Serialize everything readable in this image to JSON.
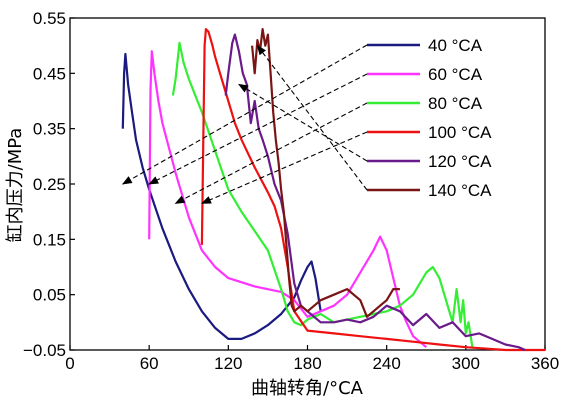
{
  "chart_data": {
    "type": "line",
    "xlabel": "曲轴转角/°CA",
    "ylabel": "缸内压力/MPa",
    "xlim": [
      0,
      360
    ],
    "ylim": [
      -0.05,
      0.55
    ],
    "xticks": [
      0,
      60,
      120,
      180,
      240,
      300,
      360
    ],
    "yticks": [
      -0.05,
      0.05,
      0.15,
      0.25,
      0.35,
      0.45,
      0.55
    ],
    "xtick_labels": [
      "0",
      "60",
      "120",
      "180",
      "240",
      "300",
      "360"
    ],
    "ytick_labels": [
      "−0.05",
      "0.05",
      "0.15",
      "0.25",
      "0.35",
      "0.45",
      "0.55"
    ],
    "grid": false,
    "legend_position": "right",
    "series": [
      {
        "name": "40 °CA",
        "color": "#1a1a80",
        "x": [
          40,
          41,
          42,
          44,
          47,
          50,
          55,
          60,
          70,
          80,
          90,
          100,
          110,
          120,
          130,
          140,
          150,
          160,
          170,
          175,
          180,
          183,
          186,
          190
        ],
        "y": [
          0.35,
          0.45,
          0.485,
          0.43,
          0.38,
          0.33,
          0.28,
          0.24,
          0.17,
          0.11,
          0.06,
          0.02,
          -0.01,
          -0.03,
          -0.03,
          -0.02,
          -0.005,
          0.015,
          0.045,
          0.075,
          0.1,
          0.11,
          0.08,
          0.02
        ]
      },
      {
        "name": "60 °CA",
        "color": "#ff33ff",
        "x": [
          60,
          61,
          62,
          64,
          67,
          70,
          80,
          90,
          100,
          110,
          120,
          140,
          160,
          170,
          180,
          190,
          200,
          210,
          220,
          230,
          235,
          240,
          245,
          250,
          255,
          260,
          270
        ],
        "y": [
          0.15,
          0.42,
          0.49,
          0.45,
          0.4,
          0.36,
          0.27,
          0.19,
          0.13,
          0.1,
          0.08,
          0.065,
          0.055,
          0.04,
          0.01,
          0.02,
          0.03,
          0.05,
          0.09,
          0.13,
          0.155,
          0.13,
          0.08,
          0.03,
          0.0,
          -0.025,
          -0.045
        ]
      },
      {
        "name": "80 °CA",
        "color": "#33ee33",
        "x": [
          78,
          80,
          83,
          86,
          90,
          95,
          100,
          110,
          120,
          130,
          140,
          150,
          160,
          165,
          170,
          175,
          180,
          190,
          200,
          210,
          220,
          230,
          240,
          250,
          260,
          270,
          275,
          280,
          285,
          290,
          293,
          296,
          298,
          300,
          302,
          305
        ],
        "y": [
          0.41,
          0.44,
          0.505,
          0.47,
          0.44,
          0.41,
          0.38,
          0.31,
          0.24,
          0.2,
          0.165,
          0.13,
          0.06,
          0.02,
          0.0,
          -0.005,
          0.005,
          0.015,
          0.0,
          0.005,
          0.01,
          0.015,
          0.02,
          0.03,
          0.05,
          0.09,
          0.1,
          0.08,
          0.04,
          0.0,
          0.06,
          0.0,
          0.04,
          -0.02,
          0.0,
          -0.045
        ]
      },
      {
        "name": "100 °CA",
        "color": "#ee1111",
        "x": [
          100,
          101,
          102,
          103,
          105,
          108,
          110,
          115,
          120,
          125,
          130,
          140,
          150,
          155,
          160,
          165,
          170,
          180,
          200,
          220,
          240,
          260,
          280,
          300,
          330,
          360
        ],
        "y": [
          0.14,
          0.33,
          0.5,
          0.53,
          0.525,
          0.5,
          0.48,
          0.44,
          0.4,
          0.36,
          0.33,
          0.28,
          0.235,
          0.21,
          0.17,
          0.1,
          0.02,
          -0.015,
          -0.02,
          -0.025,
          -0.03,
          -0.035,
          -0.04,
          -0.045,
          -0.05,
          -0.05
        ]
      },
      {
        "name": "120 °CA",
        "color": "#6a1a8a",
        "x": [
          118,
          120,
          123,
          125,
          128,
          131,
          134,
          137,
          140,
          143,
          146,
          150,
          155,
          160,
          165,
          170,
          175,
          180,
          190,
          200,
          210,
          220,
          230,
          240,
          250,
          260,
          270,
          280,
          290,
          300,
          310,
          320,
          330,
          340,
          345
        ],
        "y": [
          0.41,
          0.45,
          0.505,
          0.52,
          0.49,
          0.45,
          0.43,
          0.36,
          0.4,
          0.35,
          0.33,
          0.3,
          0.25,
          0.22,
          0.16,
          0.07,
          0.03,
          0.02,
          0.0,
          0.0,
          0.005,
          0.0,
          0.01,
          0.03,
          0.02,
          -0.005,
          0.015,
          -0.01,
          0.0,
          -0.025,
          -0.02,
          -0.03,
          -0.04,
          -0.045,
          -0.05
        ]
      },
      {
        "name": "140 °CA",
        "color": "#7a1515",
        "x": [
          138,
          140,
          142,
          144,
          146,
          148,
          150,
          152,
          154,
          156,
          158,
          160,
          162,
          164,
          166,
          168,
          170,
          175,
          180,
          190,
          200,
          210,
          220,
          225,
          230,
          235,
          240,
          245,
          250
        ],
        "y": [
          0.5,
          0.45,
          0.51,
          0.49,
          0.53,
          0.5,
          0.52,
          0.45,
          0.38,
          0.33,
          0.29,
          0.24,
          0.2,
          0.14,
          0.08,
          0.03,
          0.02,
          0.03,
          0.02,
          0.04,
          0.05,
          0.06,
          0.04,
          0.01,
          0.02,
          0.03,
          0.04,
          0.06,
          0.06
        ]
      }
    ]
  }
}
